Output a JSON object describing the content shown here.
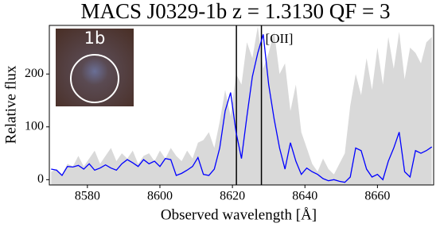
{
  "chart_data": {
    "type": "spectrum",
    "title": "MACS J0329-1b z = 1.3130 QF = 3",
    "xlabel": "Observed wavelength  [Å]",
    "ylabel": "Relative flux",
    "annotation": "[OII]",
    "inset_label": "1b",
    "xlim": [
      8569.5,
      8675.5
    ],
    "ylim": [
      -10,
      292
    ],
    "xticks": [
      8580,
      8600,
      8620,
      8640,
      8660
    ],
    "yticks": [
      0,
      100,
      200
    ],
    "vlines": [
      8621.1,
      8628.0
    ],
    "x": [
      8570,
      8571.5,
      8573,
      8574.5,
      8576,
      8577.5,
      8579,
      8580.5,
      8582,
      8583.5,
      8585,
      8586.5,
      8588,
      8589.5,
      8591,
      8592.5,
      8594,
      8595.5,
      8597,
      8598.5,
      8600,
      8601.5,
      8603,
      8604.5,
      8606,
      8607.5,
      8609,
      8610.5,
      8612,
      8613.5,
      8615,
      8616.5,
      8618,
      8619.5,
      8621,
      8622.5,
      8624,
      8625.5,
      8627,
      8628.5,
      8630,
      8631.5,
      8633,
      8634.5,
      8636,
      8637.5,
      8639,
      8640.5,
      8642,
      8643.5,
      8645,
      8646.5,
      8648,
      8649.5,
      8651,
      8652.5,
      8654,
      8655.5,
      8657,
      8658.5,
      8660,
      8661.5,
      8663,
      8664.5,
      8666,
      8667.5,
      8669,
      8670.5,
      8672,
      8673.5,
      8675
    ],
    "noise": {
      "color": "#d9d9d9",
      "values": [
        15,
        20,
        10,
        30,
        25,
        45,
        25,
        40,
        55,
        30,
        45,
        60,
        35,
        50,
        40,
        55,
        30,
        45,
        50,
        35,
        55,
        40,
        60,
        45,
        35,
        55,
        40,
        70,
        75,
        90,
        60,
        110,
        170,
        120,
        200,
        180,
        260,
        230,
        290,
        210,
        240,
        280,
        200,
        220,
        130,
        180,
        90,
        60,
        30,
        15,
        40,
        20,
        10,
        30,
        50,
        140,
        200,
        160,
        230,
        170,
        250,
        180,
        270,
        210,
        280,
        190,
        250,
        240,
        220,
        260,
        270
      ]
    },
    "flux": {
      "color": "#0000ff",
      "values": [
        20,
        18,
        8,
        25,
        24,
        27,
        20,
        30,
        18,
        22,
        28,
        22,
        18,
        30,
        38,
        32,
        25,
        38,
        30,
        35,
        25,
        40,
        38,
        8,
        12,
        18,
        25,
        42,
        10,
        8,
        20,
        60,
        130,
        165,
        90,
        40,
        120,
        195,
        240,
        275,
        180,
        115,
        60,
        20,
        70,
        35,
        10,
        22,
        15,
        10,
        2,
        -2,
        0,
        -3,
        -5,
        5,
        60,
        55,
        20,
        5,
        10,
        0,
        35,
        60,
        90,
        15,
        5,
        55,
        50,
        55,
        62
      ]
    }
  }
}
